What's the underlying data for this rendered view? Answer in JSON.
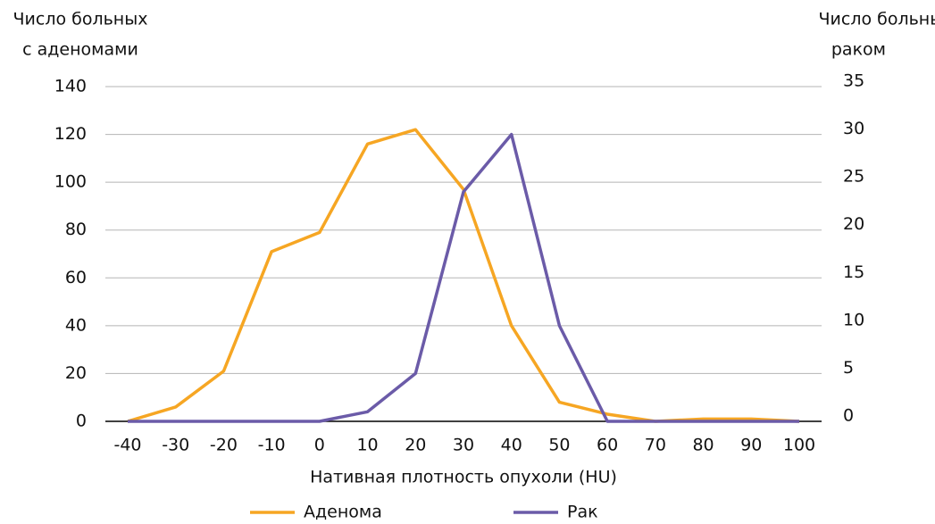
{
  "chart_data": {
    "type": "line",
    "ylabel": [
      "Число больных",
      "с аденомами"
    ],
    "y2label": [
      "Число больных",
      "раком"
    ],
    "xlabel": "Нативная плотность опухоли (HU)",
    "x": [
      -40,
      -30,
      -20,
      -10,
      0,
      10,
      20,
      30,
      40,
      50,
      60,
      70,
      80,
      90,
      100
    ],
    "xlim": [
      -40,
      100
    ],
    "xticks": [
      -40,
      -30,
      -20,
      -10,
      0,
      10,
      20,
      30,
      40,
      50,
      60,
      70,
      80,
      90,
      100
    ],
    "ylim": [
      0,
      140
    ],
    "yticks": [
      0,
      20,
      40,
      60,
      80,
      100,
      120,
      140
    ],
    "y2lim": [
      0,
      35
    ],
    "y2ticks": [
      0,
      5,
      10,
      15,
      20,
      25,
      30,
      35
    ],
    "grid": true,
    "legend": "bottom",
    "series": [
      {
        "name": "Аденома",
        "color": "#f6a623",
        "values": [
          0,
          6,
          21,
          71,
          79,
          116,
          122,
          97,
          40,
          8,
          3,
          0,
          1,
          1,
          0
        ]
      },
      {
        "name": "Рак",
        "color": "#6b5ba8",
        "axis": "y2",
        "values": [
          0,
          0,
          0,
          0,
          0,
          1,
          5,
          24,
          30,
          10,
          0,
          0,
          0,
          0,
          0
        ]
      }
    ]
  }
}
